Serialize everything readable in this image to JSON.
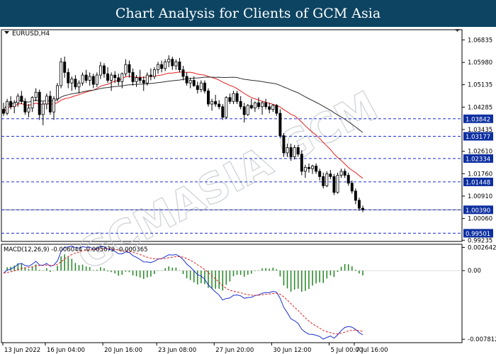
{
  "header": {
    "title": "Chart Analysis for Clients of GCM Asia"
  },
  "watermark": "GCMASIA GCM",
  "chart_data": {
    "type": "candlestick",
    "symbol_label": "EURUSD,H4",
    "price_axis_ticks": [
      "1.06835",
      "1.05980",
      "1.05135",
      "1.04285",
      "1.03435",
      "1.02610",
      "1.01760",
      "1.00910",
      "1.00060",
      "0.99235"
    ],
    "price_ylim": [
      0.9919,
      1.0722
    ],
    "support_resistance_levels": [
      1.03842,
      1.03177,
      1.02334,
      1.01448,
      1.0039,
      0.99501
    ],
    "level_labels": [
      "1.03842",
      "1.03177",
      "1.02334",
      "1.01448",
      "1.00390",
      "0.99501"
    ],
    "current_price": 1.0039,
    "x_tick_labels": [
      "13 Jun 2022",
      "16 Jun 04:00",
      "20 Jun 16:00",
      "23 Jun 08:00",
      "27 Jun 20:00",
      "30 Jun 12:00",
      "5 Jul 00:00",
      "7 Jul 16:00"
    ],
    "candles": [
      [
        1.042,
        1.0445,
        1.0395,
        1.0405
      ],
      [
        1.0405,
        1.046,
        1.0398,
        1.045
      ],
      [
        1.045,
        1.047,
        1.042,
        1.043
      ],
      [
        1.043,
        1.0455,
        1.0405,
        1.0445
      ],
      [
        1.0445,
        1.048,
        1.043,
        1.047
      ],
      [
        1.047,
        1.049,
        1.044,
        1.045
      ],
      [
        1.045,
        1.0462,
        1.04,
        1.041
      ],
      [
        1.041,
        1.044,
        1.039,
        1.0425
      ],
      [
        1.0425,
        1.047,
        1.041,
        1.0465
      ],
      [
        1.0465,
        1.05,
        1.045,
        1.0485
      ],
      [
        1.0485,
        1.0495,
        1.038,
        1.04
      ],
      [
        1.04,
        1.045,
        1.036,
        1.044
      ],
      [
        1.044,
        1.048,
        1.042,
        1.047
      ],
      [
        1.047,
        1.049,
        1.04,
        1.041
      ],
      [
        1.041,
        1.047,
        1.038,
        1.046
      ],
      [
        1.046,
        1.052,
        1.045,
        1.051
      ],
      [
        1.051,
        1.0615,
        1.05,
        1.06
      ],
      [
        1.06,
        1.062,
        1.054,
        1.056
      ],
      [
        1.056,
        1.0575,
        1.05,
        1.052
      ],
      [
        1.052,
        1.0545,
        1.049,
        1.0535
      ],
      [
        1.0535,
        1.055,
        1.0495,
        1.0505
      ],
      [
        1.0505,
        1.053,
        1.048,
        1.052
      ],
      [
        1.052,
        1.056,
        1.051,
        1.055
      ],
      [
        1.055,
        1.057,
        1.052,
        1.053
      ],
      [
        1.053,
        1.056,
        1.051,
        1.0545
      ],
      [
        1.0545,
        1.0555,
        1.05,
        1.0515
      ],
      [
        1.0515,
        1.056,
        1.0505,
        1.055
      ],
      [
        1.055,
        1.06,
        1.0535,
        1.0585
      ],
      [
        1.0585,
        1.0595,
        1.054,
        1.0555
      ],
      [
        1.0555,
        1.058,
        1.052,
        1.053
      ],
      [
        1.053,
        1.056,
        1.049,
        1.055
      ],
      [
        1.055,
        1.0565,
        1.052,
        1.054
      ],
      [
        1.054,
        1.0555,
        1.051,
        1.0525
      ],
      [
        1.0525,
        1.056,
        1.05,
        1.0555
      ],
      [
        1.0555,
        1.061,
        1.0545,
        1.059
      ],
      [
        1.059,
        1.0605,
        1.054,
        1.056
      ],
      [
        1.056,
        1.0575,
        1.051,
        1.0525
      ],
      [
        1.0525,
        1.055,
        1.0505,
        1.054
      ],
      [
        1.054,
        1.057,
        1.052,
        1.053
      ],
      [
        1.053,
        1.0545,
        1.049,
        1.052
      ],
      [
        1.052,
        1.056,
        1.051,
        1.055
      ],
      [
        1.055,
        1.0575,
        1.053,
        1.0545
      ],
      [
        1.0545,
        1.058,
        1.0535,
        1.057
      ],
      [
        1.057,
        1.06,
        1.0555,
        1.059
      ],
      [
        1.059,
        1.0605,
        1.056,
        1.0575
      ],
      [
        1.0575,
        1.061,
        1.0565,
        1.06
      ],
      [
        1.06,
        1.0625,
        1.058,
        1.061
      ],
      [
        1.061,
        1.062,
        1.057,
        1.0585
      ],
      [
        1.0585,
        1.061,
        1.057,
        1.06
      ],
      [
        1.06,
        1.0615,
        1.056,
        1.057
      ],
      [
        1.057,
        1.0585,
        1.053,
        1.0545
      ],
      [
        1.0545,
        1.056,
        1.051,
        1.052
      ],
      [
        1.052,
        1.054,
        1.05,
        1.053
      ],
      [
        1.053,
        1.0545,
        1.0505,
        1.051
      ],
      [
        1.051,
        1.0525,
        1.048,
        1.0495
      ],
      [
        1.0495,
        1.053,
        1.0485,
        1.052
      ],
      [
        1.052,
        1.053,
        1.048,
        1.049
      ],
      [
        1.049,
        1.05,
        1.043,
        1.044
      ],
      [
        1.044,
        1.046,
        1.0415,
        1.045
      ],
      [
        1.045,
        1.0475,
        1.043,
        1.044
      ],
      [
        1.044,
        1.0455,
        1.042,
        1.043
      ],
      [
        1.043,
        1.044,
        1.038,
        1.039
      ],
      [
        1.039,
        1.047,
        1.0385,
        1.0465
      ],
      [
        1.0465,
        1.048,
        1.044,
        1.045
      ],
      [
        1.045,
        1.049,
        1.044,
        1.048
      ],
      [
        1.048,
        1.049,
        1.044,
        1.045
      ],
      [
        1.045,
        1.047,
        1.042,
        1.043
      ],
      [
        1.043,
        1.0445,
        1.037,
        1.04
      ],
      [
        1.04,
        1.044,
        1.0395,
        1.0435
      ],
      [
        1.0435,
        1.046,
        1.042,
        1.0425
      ],
      [
        1.0425,
        1.045,
        1.041,
        1.0445
      ],
      [
        1.0445,
        1.0465,
        1.042,
        1.043
      ],
      [
        1.043,
        1.045,
        1.04,
        1.0445
      ],
      [
        1.0445,
        1.046,
        1.042,
        1.043
      ],
      [
        1.043,
        1.0445,
        1.0405,
        1.042
      ],
      [
        1.042,
        1.044,
        1.041,
        1.0435
      ],
      [
        1.0435,
        1.044,
        1.0395,
        1.0405
      ],
      [
        1.0405,
        1.042,
        1.031,
        1.032
      ],
      [
        1.032,
        1.033,
        1.024,
        1.0255
      ],
      [
        1.0255,
        1.029,
        1.024,
        1.0275
      ],
      [
        1.0275,
        1.029,
        1.0225,
        1.024
      ],
      [
        1.024,
        1.0285,
        1.023,
        1.0275
      ],
      [
        1.0275,
        1.0285,
        1.024,
        1.025
      ],
      [
        1.025,
        1.0265,
        1.017,
        1.0185
      ],
      [
        1.0185,
        1.021,
        1.016,
        1.02
      ],
      [
        1.02,
        1.0215,
        1.018,
        1.0195
      ],
      [
        1.0195,
        1.021,
        1.0175,
        1.0205
      ],
      [
        1.0205,
        1.0215,
        1.0175,
        1.0185
      ],
      [
        1.0185,
        1.0195,
        1.015,
        1.0165
      ],
      [
        1.0165,
        1.018,
        1.012,
        1.013
      ],
      [
        1.013,
        1.0185,
        1.0125,
        1.0175
      ],
      [
        1.0175,
        1.019,
        1.0155,
        1.0165
      ],
      [
        1.0165,
        1.0175,
        1.0095,
        1.0105
      ],
      [
        1.0105,
        1.018,
        1.01,
        1.017
      ],
      [
        1.017,
        1.0195,
        1.016,
        1.0185
      ],
      [
        1.0185,
        1.0195,
        1.016,
        1.017
      ],
      [
        1.017,
        1.018,
        1.013,
        1.014
      ],
      [
        1.014,
        1.015,
        1.01,
        1.011
      ],
      [
        1.011,
        1.012,
        1.006,
        1.0075
      ],
      [
        1.0075,
        1.0085,
        1.0035,
        1.0045
      ],
      [
        1.0045,
        1.0055,
        1.003,
        1.0039
      ]
    ],
    "moving_averages": [
      {
        "color": "#e02020",
        "period": 20
      },
      {
        "color": "#303030",
        "period": 50
      }
    ],
    "macd": {
      "label": "MACD(12,26,9) -0.006044 -0.005679 -0.000365",
      "axis_ticks": [
        "0.002642",
        "0.00",
        "-0.007812"
      ],
      "ylim": [
        -0.0082,
        0.003
      ],
      "macd_color": "#1a2fd0",
      "signal_color": "#e02020",
      "histogram_color": "#2e8b2e"
    },
    "colors": {
      "bull": "#ffffff",
      "bear": "#000000",
      "level_line": "#1a2fd0",
      "level_label_bg": "#0d2fa0"
    }
  }
}
